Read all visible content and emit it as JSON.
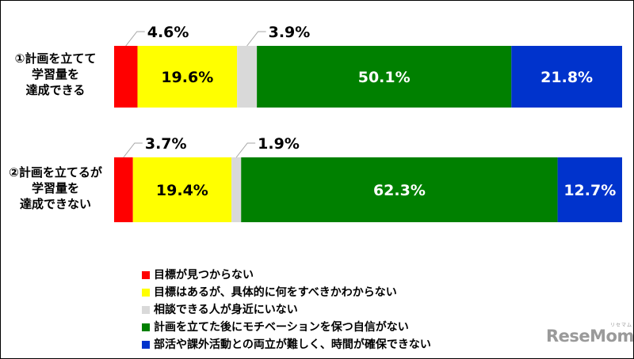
{
  "chart_data": {
    "type": "bar",
    "orientation": "horizontal",
    "stacked": true,
    "percent_scale": true,
    "categories": [
      [
        "①計画を立てて",
        "学習量を",
        "達成できる"
      ],
      [
        "②計画を立てるが",
        "学習量を",
        "達成できない"
      ]
    ],
    "series": [
      {
        "name": "目標が見つからない",
        "color": "#ff0000",
        "values": [
          4.6,
          3.7
        ],
        "labels": [
          "4.6%",
          "3.7%"
        ]
      },
      {
        "name": "目標はあるが、具体的に何をすべきかわからない",
        "color": "#ffff00",
        "values": [
          19.6,
          19.4
        ],
        "labels": [
          "19.6%",
          "19.4%"
        ]
      },
      {
        "name": "相談できる人が身近にいない",
        "color": "#d9d9d9",
        "values": [
          3.9,
          1.9
        ],
        "labels": [
          "3.9%",
          "1.9%"
        ]
      },
      {
        "name": "計画を立てた後にモチベーションを保つ自信がない",
        "color": "#008000",
        "values": [
          50.1,
          62.3
        ],
        "labels": [
          "50.1%",
          "62.3%"
        ]
      },
      {
        "name": "部活や課外活動との両立が難しく、時間が確保できない",
        "color": "#0033cc",
        "values": [
          21.8,
          12.7
        ],
        "labels": [
          "21.8%",
          "12.7%"
        ]
      }
    ],
    "label_text_colors": [
      "#000000",
      "#000000",
      "#000000",
      "#ffffff",
      "#ffffff"
    ],
    "callout_series": [
      0,
      2
    ],
    "legend_position": "bottom",
    "grid": false
  },
  "logo": {
    "text": "ReseMom",
    "small_text": "リセマム"
  }
}
